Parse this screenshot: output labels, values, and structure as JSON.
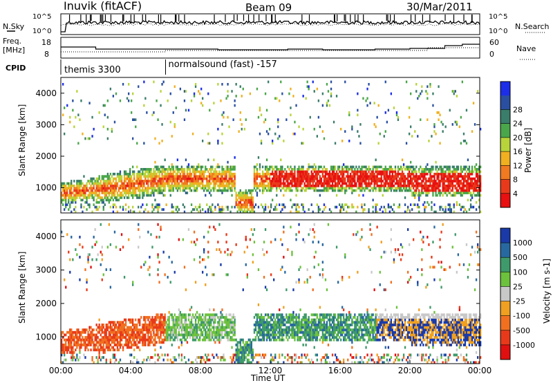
{
  "header": {
    "station": "Inuvik (fitACF)",
    "beam": "Beam 09",
    "date": "30/Mar/2011"
  },
  "noise_panel": {
    "left_label": "N.Sky",
    "right_label": "N.Search",
    "ticks": [
      "10^5",
      "10^0"
    ]
  },
  "freq_panel": {
    "left_label": "Freq.",
    "left_unit": "[MHz]",
    "left_ticks": [
      "18",
      "8"
    ],
    "right_label": "Nave",
    "right_ticks": [
      "60",
      "0"
    ]
  },
  "cpid": {
    "label": "CPID",
    "modes": [
      {
        "name": "themis 3300",
        "start_hour": 0
      },
      {
        "name": "normalsound (fast) -157",
        "start_hour": 6
      }
    ]
  },
  "chart_data": [
    {
      "type": "heatmap",
      "name": "power",
      "ylabel": "Slant Range [km]",
      "yticks": [
        "1000",
        "2000",
        "3000",
        "4000"
      ],
      "ylim": [
        200,
        4500
      ],
      "xlim_hours": [
        0,
        24
      ],
      "colorbar_label": "Power [dB]",
      "colorbar_ticks": [
        "4",
        "8",
        "12",
        "16",
        "20",
        "24",
        "28"
      ],
      "colorbar_colors": [
        "#1c2ee8",
        "#2a4fa0",
        "#3a7d6a",
        "#4aa64a",
        "#b8d43a",
        "#f0b020",
        "#f07a20",
        "#e83a1a",
        "#e81010"
      ]
    },
    {
      "type": "heatmap",
      "name": "velocity",
      "ylabel": "Slant Range [km]",
      "yticks": [
        "1000",
        "2000",
        "3000",
        "4000"
      ],
      "ylim": [
        200,
        4500
      ],
      "xlim_hours": [
        0,
        24
      ],
      "colorbar_label": "Velocity [m s-1]",
      "colorbar_ticks": [
        "1000",
        "500",
        "100",
        "25",
        "-25",
        "-100",
        "-500",
        "-1000"
      ],
      "colorbar_colors": [
        "#1a3aa8",
        "#2868a0",
        "#3e9a6a",
        "#6cc23c",
        "#c8c8c8",
        "#f0a020",
        "#f07020",
        "#e83a1a",
        "#e01010"
      ]
    }
  ],
  "xaxis": {
    "label": "Time UT",
    "ticks": [
      "00:00",
      "04:00",
      "08:00",
      "12:00",
      "16:00",
      "20:00",
      "00:00"
    ]
  }
}
